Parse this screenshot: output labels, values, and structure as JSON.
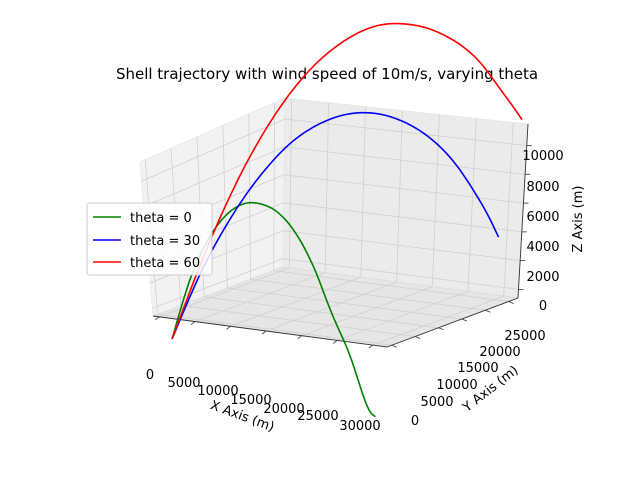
{
  "chart_data": {
    "type": "line",
    "projection": "3d",
    "title": "Shell trajectory with wind speed of 10m/s, varying theta",
    "xlabel": "X Axis (m)",
    "ylabel": "Y Axis (m)",
    "zlabel": "Z Axis (m)",
    "xlim": [
      0,
      32000
    ],
    "ylim": [
      0,
      27000
    ],
    "zlim": [
      0,
      11500
    ],
    "x_ticks": [
      "0",
      "5000",
      "10000",
      "15000",
      "20000",
      "25000",
      "30000"
    ],
    "y_ticks": [
      "0",
      "5000",
      "10000",
      "15000",
      "20000",
      "25000"
    ],
    "z_ticks": [
      "0",
      "2000",
      "4000",
      "6000",
      "8000",
      "10000"
    ],
    "grid": true,
    "legend_position": "center-left",
    "series": [
      {
        "name": "theta = 0",
        "color": "#008000",
        "x": [
          0,
          2700,
          5400,
          8100,
          10800,
          13500,
          16200,
          18900,
          21600,
          24300,
          27000,
          29700,
          31000
        ],
        "y": [
          0,
          0,
          0,
          0,
          0,
          0,
          0,
          0,
          0,
          0,
          0,
          0,
          0
        ],
        "z": [
          0,
          3450,
          5850,
          7450,
          8350,
          8600,
          8350,
          7450,
          5850,
          3600,
          1600,
          -1000,
          -1500
        ]
      },
      {
        "name": "theta = 30",
        "color": "#0000ff",
        "x": [
          0,
          2600,
          5300,
          8000,
          10600,
          13300,
          15900,
          18600,
          21300,
          23800,
          26200,
          27600
        ],
        "y": [
          0,
          1500,
          3100,
          4600,
          6100,
          7700,
          9200,
          10700,
          12300,
          13700,
          15100,
          15900
        ],
        "z": [
          0,
          3450,
          6150,
          8100,
          9350,
          9900,
          9850,
          9200,
          7850,
          5950,
          3200,
          1200
        ]
      },
      {
        "name": "theta = 60",
        "color": "#ff0000",
        "x": [
          0,
          1500,
          3000,
          4500,
          6000,
          7500,
          9000,
          10500,
          12000,
          13500,
          14900,
          15700
        ],
        "y": [
          0,
          2600,
          5200,
          7800,
          10400,
          13000,
          15600,
          18200,
          20800,
          23400,
          25800,
          27000
        ],
        "z": [
          0,
          3800,
          6900,
          9150,
          10600,
          11250,
          11200,
          10350,
          8850,
          6600,
          3500,
          1800
        ]
      }
    ]
  }
}
